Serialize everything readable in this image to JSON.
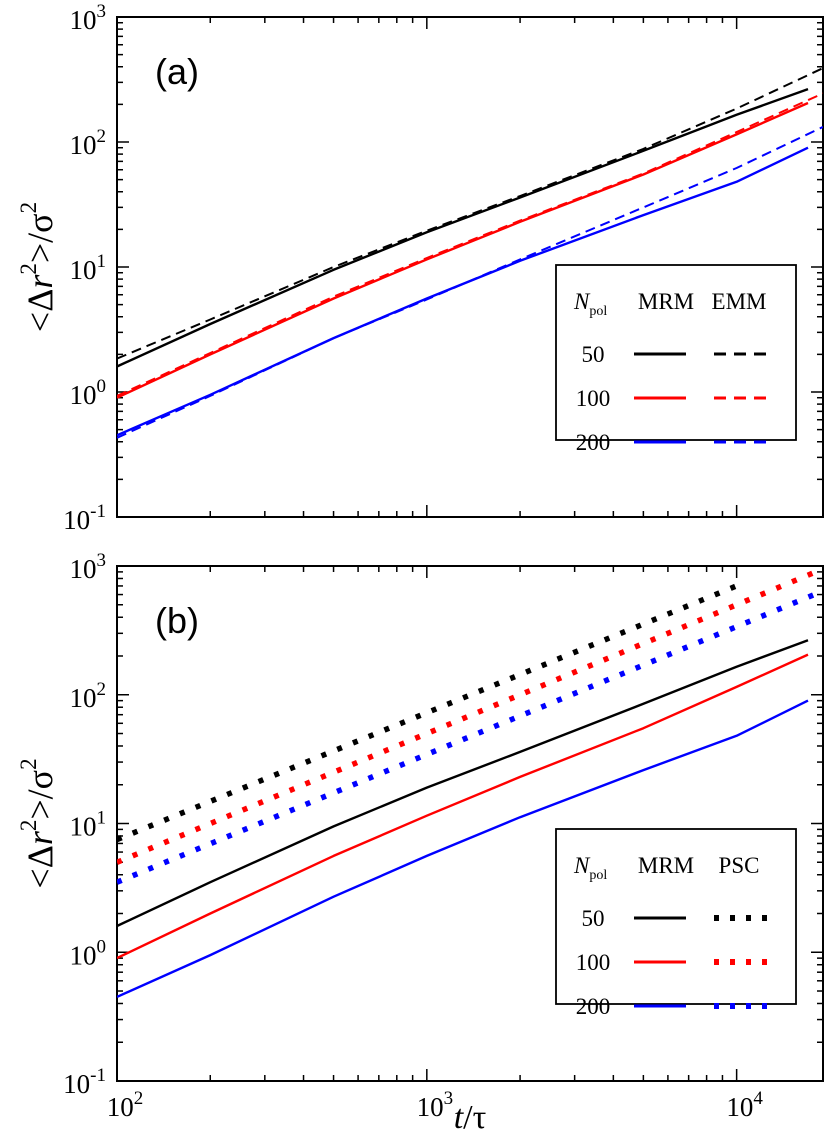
{
  "chart_data": [
    {
      "type": "line",
      "panel_label": "(a)",
      "xscale": "log",
      "yscale": "log",
      "xlim": [
        100,
        19000
      ],
      "ylim": [
        0.1,
        1000
      ],
      "x_ticks": [
        {
          "base": "10",
          "exp": "2",
          "value": 100
        },
        {
          "base": "10",
          "exp": "3",
          "value": 1000
        },
        {
          "base": "10",
          "exp": "4",
          "value": 10000
        }
      ],
      "y_ticks": [
        {
          "base": "10",
          "exp": "-1",
          "value": 0.1
        },
        {
          "base": "10",
          "exp": "0",
          "value": 1
        },
        {
          "base": "10",
          "exp": "1",
          "value": 10
        },
        {
          "base": "10",
          "exp": "2",
          "value": 100
        },
        {
          "base": "10",
          "exp": "3",
          "value": 1000
        }
      ],
      "ylabel": {
        "open": "<Δ",
        "r": "r",
        "sup1": "2",
        "close": ">/σ",
        "sup2": "2"
      },
      "xlabel": "",
      "legend": {
        "placement": "lower-right",
        "header": {
          "n": "N",
          "sub": "pol",
          "col1": "MRM",
          "col2": "EMM"
        },
        "rows": [
          "50",
          "100",
          "200"
        ]
      },
      "series": [
        {
          "name": "MRM 50",
          "color": "#000000",
          "style": "solid",
          "x": [
            100,
            200,
            500,
            1000,
            2000,
            5000,
            10000,
            17000
          ],
          "y": [
            1.6,
            3.5,
            9.5,
            19,
            36,
            85,
            165,
            265
          ]
        },
        {
          "name": "EMM 50",
          "color": "#000000",
          "style": "dashed",
          "x": [
            100,
            200,
            500,
            1000,
            2000,
            5000,
            10000,
            19000
          ],
          "y": [
            1.85,
            3.8,
            10,
            19.5,
            37,
            88,
            185,
            390
          ]
        },
        {
          "name": "MRM 100",
          "color": "#ff0000",
          "style": "solid",
          "x": [
            100,
            200,
            500,
            1000,
            2000,
            5000,
            10000,
            17000
          ],
          "y": [
            0.9,
            2.0,
            5.6,
            11.5,
            23,
            55,
            115,
            205
          ]
        },
        {
          "name": "EMM 100",
          "color": "#ff0000",
          "style": "dashed",
          "x": [
            100,
            200,
            500,
            1000,
            2000,
            5000,
            10000,
            19000
          ],
          "y": [
            0.93,
            2.05,
            5.8,
            11.8,
            23.5,
            56,
            120,
            245
          ]
        },
        {
          "name": "MRM 200",
          "color": "#0000ff",
          "style": "solid",
          "x": [
            100,
            200,
            500,
            1000,
            2000,
            5000,
            10000,
            17000
          ],
          "y": [
            0.45,
            0.95,
            2.7,
            5.6,
            11.2,
            26,
            48,
            90
          ]
        },
        {
          "name": "EMM 200",
          "color": "#0000ff",
          "style": "dashed",
          "x": [
            100,
            200,
            500,
            1000,
            2000,
            5000,
            10000,
            19000
          ],
          "y": [
            0.43,
            0.93,
            2.7,
            5.5,
            11.5,
            30,
            62,
            132
          ]
        }
      ]
    },
    {
      "type": "line",
      "panel_label": "(b)",
      "xscale": "log",
      "yscale": "log",
      "xlim": [
        100,
        19000
      ],
      "ylim": [
        0.1,
        1000
      ],
      "x_ticks": [
        {
          "base": "10",
          "exp": "2",
          "value": 100
        },
        {
          "base": "10",
          "exp": "3",
          "value": 1000
        },
        {
          "base": "10",
          "exp": "4",
          "value": 10000
        }
      ],
      "y_ticks": [
        {
          "base": "10",
          "exp": "-1",
          "value": 0.1
        },
        {
          "base": "10",
          "exp": "0",
          "value": 1
        },
        {
          "base": "10",
          "exp": "1",
          "value": 10
        },
        {
          "base": "10",
          "exp": "2",
          "value": 100
        },
        {
          "base": "10",
          "exp": "3",
          "value": 1000
        }
      ],
      "ylabel": {
        "open": "<Δ",
        "r": "r",
        "sup1": "2",
        "close": ">/σ",
        "sup2": "2"
      },
      "xlabel": {
        "t": "t",
        "rest": "/τ"
      },
      "legend": {
        "placement": "lower-right",
        "header": {
          "n": "N",
          "sub": "pol",
          "col1": "MRM",
          "col2": "PSC"
        },
        "rows": [
          "50",
          "100",
          "200"
        ]
      },
      "series": [
        {
          "name": "MRM 50",
          "color": "#000000",
          "style": "solid",
          "x": [
            100,
            200,
            500,
            1000,
            2000,
            5000,
            10000,
            17000
          ],
          "y": [
            1.6,
            3.5,
            9.5,
            19,
            36,
            85,
            165,
            265
          ]
        },
        {
          "name": "PSC 50",
          "color": "#000000",
          "style": "dotted",
          "x": [
            100,
            10000
          ],
          "y": [
            7.5,
            700
          ]
        },
        {
          "name": "MRM 100",
          "color": "#ff0000",
          "style": "solid",
          "x": [
            100,
            200,
            500,
            1000,
            2000,
            5000,
            10000,
            17000
          ],
          "y": [
            0.9,
            2.0,
            5.6,
            11.5,
            23,
            55,
            115,
            205
          ]
        },
        {
          "name": "PSC 100",
          "color": "#ff0000",
          "style": "dotted",
          "x": [
            100,
            19000
          ],
          "y": [
            5.0,
            950
          ]
        },
        {
          "name": "MRM 200",
          "color": "#0000ff",
          "style": "solid",
          "x": [
            100,
            200,
            500,
            1000,
            2000,
            5000,
            10000,
            17000
          ],
          "y": [
            0.45,
            0.95,
            2.7,
            5.6,
            11.2,
            26,
            48,
            90
          ]
        },
        {
          "name": "PSC 200",
          "color": "#0000ff",
          "style": "dotted",
          "x": [
            100,
            19000
          ],
          "y": [
            3.5,
            640
          ]
        }
      ]
    }
  ]
}
